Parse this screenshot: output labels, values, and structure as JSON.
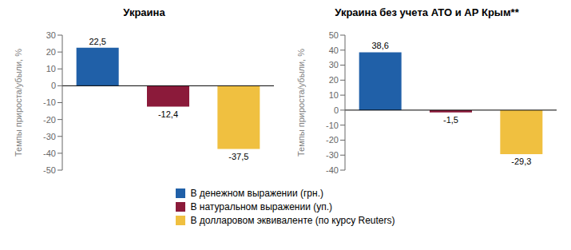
{
  "chart_data": [
    {
      "type": "bar",
      "title": "Украина",
      "categories": [
        "В денежном выражении (грн.)",
        "В натуральном выражении (уп.)",
        "В долларовом эквиваленте (по курсу Reuters)"
      ],
      "values": [
        22.5,
        -12.4,
        -37.5
      ],
      "value_labels": [
        "22,5",
        "-12,4",
        "-37,5"
      ],
      "colors": [
        "#2060a8",
        "#8b1a3a",
        "#f0c040"
      ],
      "ylabel": "Темпы прироста/убыли, %",
      "ylim": [
        -50,
        30
      ],
      "yticks": [
        -50,
        -40,
        -30,
        -20,
        -10,
        0,
        10,
        20,
        30
      ],
      "data_labels": true,
      "tick_labels": "y",
      "grid": false,
      "legend": "bottom"
    },
    {
      "type": "bar",
      "title": "Украина без учета АТО и АР Крым**",
      "categories": [
        "В денежном выражении (грн.)",
        "В натуральном выражении (уп.)",
        "В долларовом эквиваленте (по курсу Reuters)"
      ],
      "values": [
        38.6,
        -1.5,
        -29.3
      ],
      "value_labels": [
        "38,6",
        "-1,5",
        "-29,3"
      ],
      "colors": [
        "#2060a8",
        "#8b1a3a",
        "#f0c040"
      ],
      "ylabel": "Темпы прироста/убыли, %",
      "ylim": [
        -40,
        50
      ],
      "yticks": [
        -40,
        -30,
        -20,
        -10,
        0,
        10,
        20,
        30,
        40,
        50
      ],
      "data_labels": true,
      "tick_labels": "y",
      "grid": false,
      "legend": "bottom"
    }
  ]
}
